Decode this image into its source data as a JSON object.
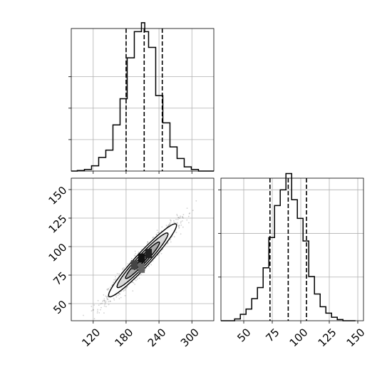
{
  "chart_data": {
    "type": "corner",
    "panels": [
      {
        "id": "hist_x",
        "type": "histogram",
        "xlim": [
          80,
          340
        ],
        "ylim": [
          0,
          0.0136
        ],
        "grid": true,
        "y_tick_values": [
          0.003,
          0.006,
          0.009
        ],
        "y_tick_labels_visible": false,
        "bins": [
          {
            "x0": 80,
            "x1": 91,
            "y": 0.0
          },
          {
            "x0": 91,
            "x1": 104,
            "y": 5e-05
          },
          {
            "x0": 104,
            "x1": 117,
            "y": 0.00015
          },
          {
            "x0": 117,
            "x1": 130,
            "y": 0.0005
          },
          {
            "x0": 130,
            "x1": 143,
            "y": 0.0013
          },
          {
            "x0": 143,
            "x1": 156,
            "y": 0.002
          },
          {
            "x0": 156,
            "x1": 169,
            "y": 0.0044
          },
          {
            "x0": 169,
            "x1": 182,
            "y": 0.0069
          },
          {
            "x0": 182,
            "x1": 195,
            "y": 0.0108
          },
          {
            "x0": 195,
            "x1": 208,
            "y": 0.0133
          },
          {
            "x0": 208,
            "x1": 214,
            "y": 0.01415
          },
          {
            "x0": 214,
            "x1": 221,
            "y": 0.0133
          },
          {
            "x0": 221,
            "x1": 234,
            "y": 0.0118
          },
          {
            "x0": 234,
            "x1": 247,
            "y": 0.0072
          },
          {
            "x0": 247,
            "x1": 260,
            "y": 0.0046
          },
          {
            "x0": 260,
            "x1": 273,
            "y": 0.0023
          },
          {
            "x0": 273,
            "x1": 286,
            "y": 0.0012
          },
          {
            "x0": 286,
            "x1": 299,
            "y": 0.0004
          },
          {
            "x0": 299,
            "x1": 312,
            "y": 0.00015
          },
          {
            "x0": 312,
            "x1": 340,
            "y": 0.0
          }
        ],
        "quantiles": [
          180,
          213,
          246
        ]
      },
      {
        "id": "scatter_xy",
        "type": "hist2d_scatter",
        "xlim": [
          80,
          340
        ],
        "ylim": [
          35,
          160
        ],
        "grid": true,
        "x_ticks": [
          120,
          180,
          240,
          300
        ],
        "y_ticks": [
          50,
          75,
          100,
          125,
          150
        ],
        "mean": [
          210,
          88
        ],
        "sigma": [
          31,
          16
        ],
        "correlation": 0.96,
        "n_points": 1500,
        "contour_levels_sigma": [
          0.5,
          1.0,
          1.5,
          2.0
        ],
        "dense_cells": [
          {
            "x": 208,
            "y": 90,
            "shade": "#111111"
          },
          {
            "x": 221,
            "y": 94,
            "shade": "#222222"
          },
          {
            "x": 195,
            "y": 84,
            "shade": "#444444"
          },
          {
            "x": 208,
            "y": 81,
            "shade": "#666666"
          }
        ]
      },
      {
        "id": "hist_y",
        "type": "histogram",
        "xlim": [
          30,
          155
        ],
        "ylim": [
          0,
          0.0245
        ],
        "grid": true,
        "x_ticks": [
          50,
          75,
          100,
          125,
          150
        ],
        "y_tick_values": [
          0.0075,
          0.015,
          0.0225
        ],
        "y_tick_labels_visible": false,
        "bins": [
          {
            "x0": 30,
            "x1": 42,
            "y": 0.0
          },
          {
            "x0": 42,
            "x1": 47,
            "y": 0.0003
          },
          {
            "x0": 47,
            "x1": 52,
            "y": 0.0011
          },
          {
            "x0": 52,
            "x1": 57,
            "y": 0.002
          },
          {
            "x0": 57,
            "x1": 62,
            "y": 0.0038
          },
          {
            "x0": 62,
            "x1": 67,
            "y": 0.0057
          },
          {
            "x0": 67,
            "x1": 72,
            "y": 0.0091
          },
          {
            "x0": 72,
            "x1": 77,
            "y": 0.0143
          },
          {
            "x0": 77,
            "x1": 82,
            "y": 0.0198
          },
          {
            "x0": 82,
            "x1": 87,
            "y": 0.0225
          },
          {
            "x0": 87,
            "x1": 92,
            "y": 0.0253
          },
          {
            "x0": 92,
            "x1": 97,
            "y": 0.0208
          },
          {
            "x0": 97,
            "x1": 102,
            "y": 0.0176
          },
          {
            "x0": 102,
            "x1": 107,
            "y": 0.0137
          },
          {
            "x0": 107,
            "x1": 112,
            "y": 0.0076
          },
          {
            "x0": 112,
            "x1": 117,
            "y": 0.0046
          },
          {
            "x0": 117,
            "x1": 122,
            "y": 0.0024
          },
          {
            "x0": 122,
            "x1": 127,
            "y": 0.0013
          },
          {
            "x0": 127,
            "x1": 132,
            "y": 0.0006
          },
          {
            "x0": 132,
            "x1": 137,
            "y": 0.0002
          },
          {
            "x0": 137,
            "x1": 148,
            "y": 0.0
          }
        ],
        "quantiles": [
          73,
          89,
          105
        ]
      }
    ]
  }
}
